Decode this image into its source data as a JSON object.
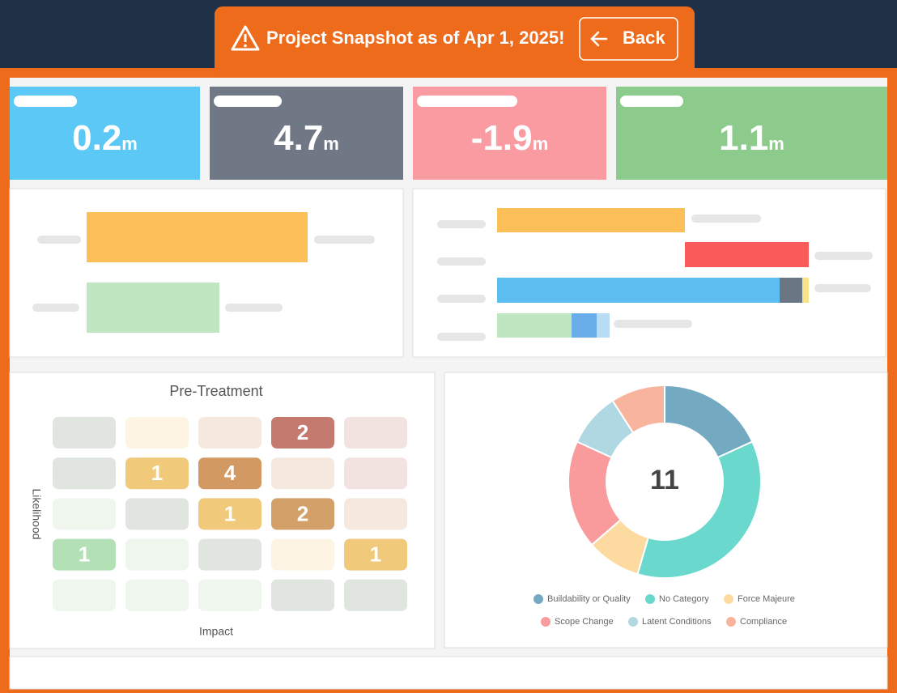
{
  "header": {
    "title": "Project Snapshot as of Apr 1, 2025!",
    "back": "Back"
  },
  "kpis": [
    {
      "value": 0.2,
      "unit": "m",
      "color": "#5bc8f5"
    },
    {
      "value": 4.7,
      "unit": "m",
      "color": "#717885"
    },
    {
      "value": -1.9,
      "unit": "m",
      "color": "#f99ba1"
    },
    {
      "value": 1.1,
      "unit": "m",
      "color": "#8dcb8c"
    }
  ],
  "matrix": {
    "title": "Pre-Treatment",
    "y_label": "Likelihood",
    "x_label": "Impact",
    "cells": [
      [
        null,
        null,
        null,
        2,
        null
      ],
      [
        null,
        1,
        4,
        null,
        null
      ],
      [
        null,
        null,
        1,
        2,
        null
      ],
      [
        1,
        null,
        null,
        null,
        1
      ],
      [
        null,
        null,
        null,
        null,
        null
      ]
    ],
    "colors": [
      [
        "#e1e5e0",
        "#fdf4e3",
        "#f5e9df",
        "#c47a6f",
        "#f2e3e1"
      ],
      [
        "#e1e5e0",
        "#f1c97a",
        "#d29a62",
        "#f5e9df",
        "#f2e3e1"
      ],
      [
        "#eef6ee",
        "#e1e5e0",
        "#f1c97a",
        "#d4a06a",
        "#f5e9df"
      ],
      [
        "#b4e0b5",
        "#eef6ee",
        "#e1e5e0",
        "#fdf4e3",
        "#f1c97a"
      ],
      [
        "#eef6ee",
        "#eef6ee",
        "#eef6ee",
        "#e1e5e0",
        "#e1e5e0"
      ]
    ]
  },
  "donut": {
    "total": 11,
    "categories": [
      "Buildability or Quality",
      "No Category",
      "Force Majeure",
      "Scope Change",
      "Latent Conditions",
      "Compliance"
    ],
    "values": [
      2,
      4,
      1,
      2,
      1,
      1
    ],
    "colors": [
      "#73aac2",
      "#6ad8cc",
      "#fddba0",
      "#f99a9c",
      "#b0d8e3",
      "#f9b49d"
    ]
  }
}
